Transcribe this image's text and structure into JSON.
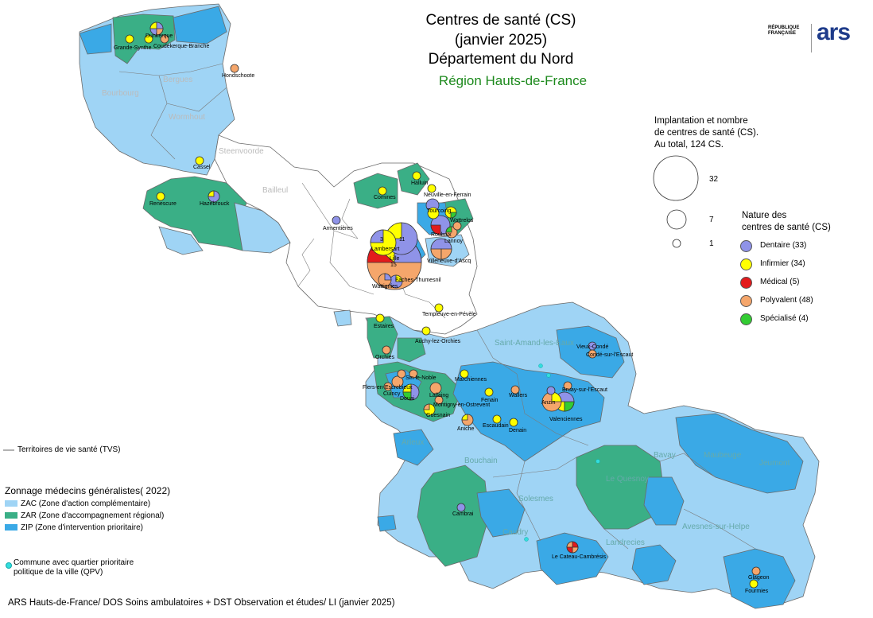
{
  "title": {
    "line1": "Centres de santé (CS)",
    "line2": "(janvier 2025)",
    "line3": "Département du Nord",
    "region": "Région Hauts-de-France"
  },
  "logos": {
    "republique": "RÉPUBLIQUE\nFRANÇAISE",
    "ars": "ars"
  },
  "size_legend": {
    "heading_1": "Implantation et nombre",
    "heading_2": "de centres de santé (CS).",
    "heading_3": "Au total, 124 CS.",
    "values": [
      "32",
      "7",
      "1"
    ]
  },
  "nature_legend": {
    "heading_1": "Nature des",
    "heading_2": "centres de santé (CS)",
    "items": [
      {
        "label": "Dentaire (33)",
        "color": "#8f93e8"
      },
      {
        "label": "Infirmier (34)",
        "color": "#ffff00"
      },
      {
        "label": "Médical (5)",
        "color": "#e31a1c"
      },
      {
        "label": "Polyvalent (48)",
        "color": "#f5a66b"
      },
      {
        "label": "Spécialisé (4)",
        "color": "#33cc33"
      }
    ]
  },
  "tvs_legend": "Territoires de vie santé (TVS)",
  "zonage_legend": {
    "heading": "Zonnage médecins généralistes( 2022)",
    "items": [
      {
        "label": "ZAC (Zone d'action complémentaire)",
        "color": "#9fd4f5"
      },
      {
        "label": "ZAR (Zone d'accompagnement régional)",
        "color": "#3aaf86"
      },
      {
        "label": "ZIP (Zone d'intervention prioritaire)",
        "color": "#3aa9e6"
      }
    ]
  },
  "qpv_legend": {
    "line1": "Commune avec quartier prioritaire",
    "line2": "politique de la ville (QPV)",
    "color": "#33dddd"
  },
  "source": "ARS Hauts-de-France/ DOS Soins ambulatoires + DST Observation et études/ LI (janvier 2025)",
  "map_labels": {
    "dunkerque": "Dunkerque",
    "grande_synthe": "Grande-Synthe",
    "coudekerque": "Coudekerque-Branche",
    "hondschoote": "Hondschoote",
    "cassel": "Cassel",
    "renescure": "Renescure",
    "hazebrouck": "Hazebrouck",
    "armentieres": "Armentières",
    "comines": "Comines",
    "halluin": "Halluin",
    "neuville": "Neuville-en-Ferrain",
    "tourcoing": "Tourcoing",
    "roubaix": "Roubaix",
    "wattrelos": "Wattrelos",
    "lannoy": "Lannoy",
    "lambersart": "Lambersart",
    "lille": "Lille",
    "villeneuve": "Villeneuve-d'Ascq",
    "faches": "Faches-Thumesnil",
    "wattignies": "Wattignies",
    "templeuve": "Templeuve-en-Pévèle",
    "auchy": "Auchy-lez-Orchies",
    "flers": "Flers-en-Escrebieux",
    "cuincy": "Cuincy",
    "douai": "Douai",
    "lallaing": "Lallaing",
    "montigny": "Montigny-en-Ostrevent",
    "guesnain": "Guesnain",
    "aniche": "Aniche",
    "escaudain": "Escaudain",
    "denain": "Denain",
    "marchiennes": "Marchiennes",
    "fenain": "Fenain",
    "wallers": "Wallers",
    "anzin": "Anzin",
    "bruay": "Bruay-sur-l'Escaut",
    "valenciennes": "Valenciennes",
    "vieux_conde": "Vieux-Condé",
    "conde": "Condé-sur-l'Escaut",
    "cambrai": "Cambrai",
    "le_cateau": "Le Cateau-Cambrésis",
    "glageon": "Glageon",
    "fourmies": "Fourmies",
    "estaires": "Estaires",
    "orchies": "Orchies",
    "sin": "Sin-le-Noble",
    "num_lille": "15",
    "num_mq": "11",
    "num_lamb": "3"
  },
  "faded_labels": {
    "bergues": "Bergues",
    "bourbourg": "Bourbourg",
    "wormhout": "Wormhout",
    "steenvoorde": "Steenvoorde",
    "bailleul": "Bailleul",
    "bavay": "Bavay",
    "maubeuge": "Maubeuge",
    "jeumont": "Jeumont",
    "le_quesnoy": "Le Quesnoy",
    "avesnes": "Avesnes-sur-Helpe",
    "landrecies": "Landrecies",
    "solesmes": "Solesmes",
    "caudry": "Caudry",
    "bouchain": "Bouchain",
    "saint_amand": "Saint-Amand-les-Eaux",
    "arleux": "Arleux"
  }
}
